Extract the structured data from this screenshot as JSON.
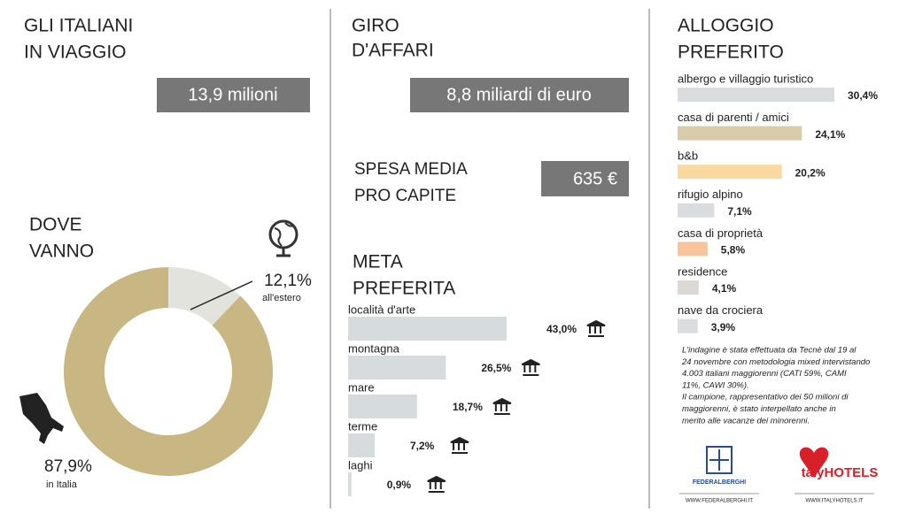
{
  "travelers": {
    "title": [
      "GLI ITALIANI",
      "IN VIAGGIO"
    ],
    "value": "13,9 milioni"
  },
  "turnover": {
    "title": [
      "GIRO",
      "D'AFFARI"
    ],
    "value": "8,8 miliardi di euro"
  },
  "spending": {
    "title": [
      "SPESA MEDIA",
      "PRO CAPITE"
    ],
    "value": "635 €"
  },
  "chart_data": [
    {
      "type": "donut",
      "title": [
        "DOVE",
        "VANNO"
      ],
      "categories": [
        "all'estero",
        "in Italia"
      ],
      "values": [
        12.1,
        87.9
      ],
      "value_labels": [
        "12,1%",
        "87,9%"
      ],
      "colors": [
        "#e3e3dd",
        "#c8b783"
      ]
    },
    {
      "type": "hbar",
      "title": [
        "META",
        "PREFERITA"
      ],
      "categories": [
        "località d'arte",
        "montagna",
        "mare",
        "terme",
        "laghi"
      ],
      "values": [
        43.0,
        26.5,
        18.7,
        7.2,
        0.9
      ],
      "value_labels": [
        "43,0%",
        "26,5%",
        "18,7%",
        "7,2%",
        "0,9%"
      ],
      "color": "#d6dbde"
    },
    {
      "type": "hbar-stack",
      "title": [
        "ALLOGGIO",
        "PREFERITO"
      ],
      "categories": [
        "albergo e villaggio turistico",
        "casa di parenti / amici",
        "b&b",
        "rifugio alpino",
        "casa di proprietà",
        "residence",
        "nave da crociera"
      ],
      "values": [
        30.4,
        24.1,
        20.2,
        7.1,
        5.8,
        4.1,
        3.9
      ],
      "value_labels": [
        "30,4%",
        "24,1%",
        "20,2%",
        "7,1%",
        "5,8%",
        "4,1%",
        "3,9%"
      ],
      "colors": [
        "#d9dde0",
        "#d8ccaa",
        "#f8d9a0",
        "#d9dde0",
        "#f7c49c",
        "#dbd9d1",
        "#d9dde0"
      ]
    }
  ],
  "note": [
    "L'indagine è stata effettuata da Tecnè dal 19 al",
    "24 novembre con metodologia mixed intervistando",
    "4.003 italiani maggiorenni (CATI 59%, CAMI",
    "11%, CAWI 30%).",
    "Il campione, rappresentativo dei 50 milioni di",
    "maggiorenni, è stato interpellato anche in",
    "merito alle vacanze dei minorenni."
  ],
  "logos": [
    {
      "name": "FEDERALBERGHI",
      "url": "WWW.FEDERALBERGHI.IT"
    },
    {
      "name": "talyHOTELS",
      "url": "WWW.ITALYHOTELS.IT"
    }
  ]
}
